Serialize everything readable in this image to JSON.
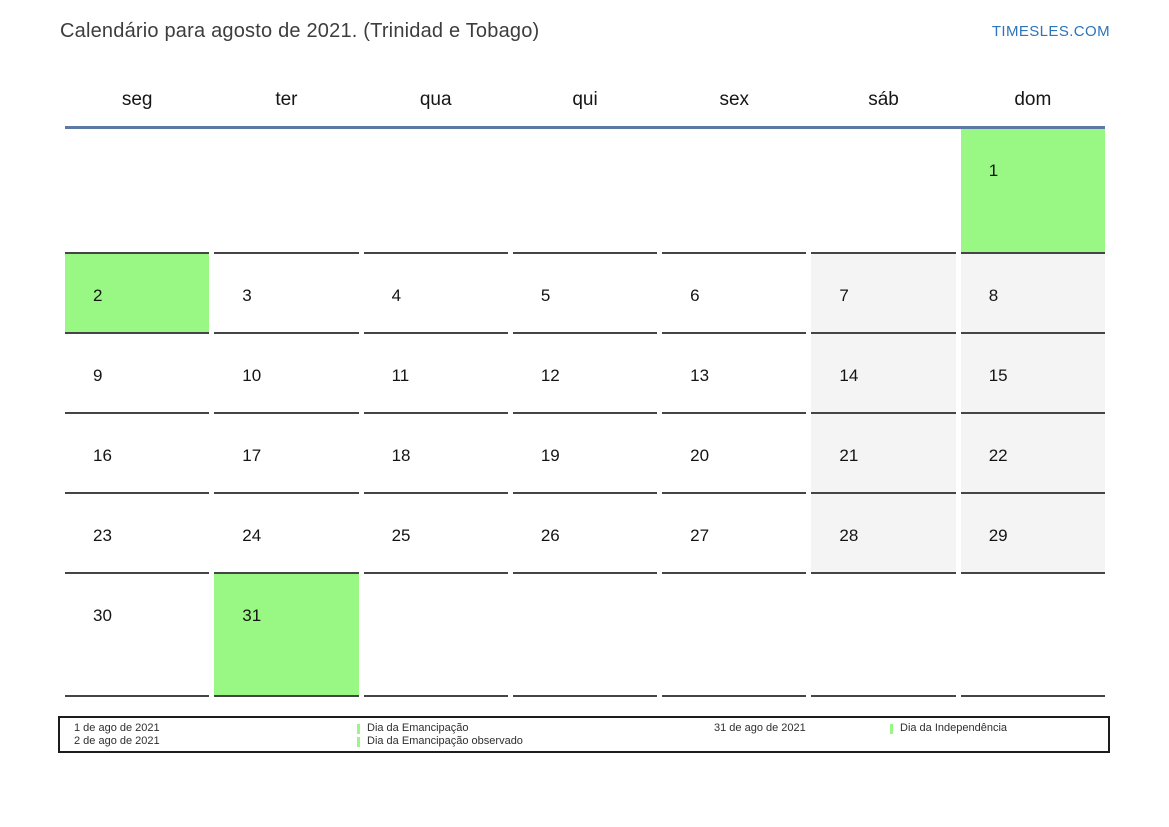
{
  "page": {
    "title": "Calendário para agosto de 2021. (Trinidad e Tobago)",
    "brand": "TIMESLES.COM"
  },
  "colors": {
    "holiday_green": "#99f784",
    "weekend_gray": "#f4f4f4",
    "header_line_blue": "#5b79a3",
    "brand_blue": "#2d74b8"
  },
  "weekdays": [
    "seg",
    "ter",
    "qua",
    "qui",
    "sex",
    "sáb",
    "dom"
  ],
  "weeks": [
    [
      {
        "day": "",
        "type": "empty"
      },
      {
        "day": "",
        "type": "empty"
      },
      {
        "day": "",
        "type": "empty"
      },
      {
        "day": "",
        "type": "empty"
      },
      {
        "day": "",
        "type": "empty"
      },
      {
        "day": "",
        "type": "empty"
      },
      {
        "day": "1",
        "type": "holiday"
      }
    ],
    [
      {
        "day": "2",
        "type": "holiday"
      },
      {
        "day": "3",
        "type": "normal"
      },
      {
        "day": "4",
        "type": "normal"
      },
      {
        "day": "5",
        "type": "normal"
      },
      {
        "day": "6",
        "type": "normal"
      },
      {
        "day": "7",
        "type": "weekend"
      },
      {
        "day": "8",
        "type": "weekend"
      }
    ],
    [
      {
        "day": "9",
        "type": "normal"
      },
      {
        "day": "10",
        "type": "normal"
      },
      {
        "day": "11",
        "type": "normal"
      },
      {
        "day": "12",
        "type": "normal"
      },
      {
        "day": "13",
        "type": "normal"
      },
      {
        "day": "14",
        "type": "weekend"
      },
      {
        "day": "15",
        "type": "weekend"
      }
    ],
    [
      {
        "day": "16",
        "type": "normal"
      },
      {
        "day": "17",
        "type": "normal"
      },
      {
        "day": "18",
        "type": "normal"
      },
      {
        "day": "19",
        "type": "normal"
      },
      {
        "day": "20",
        "type": "normal"
      },
      {
        "day": "21",
        "type": "weekend"
      },
      {
        "day": "22",
        "type": "weekend"
      }
    ],
    [
      {
        "day": "23",
        "type": "normal"
      },
      {
        "day": "24",
        "type": "normal"
      },
      {
        "day": "25",
        "type": "normal"
      },
      {
        "day": "26",
        "type": "normal"
      },
      {
        "day": "27",
        "type": "normal"
      },
      {
        "day": "28",
        "type": "weekend"
      },
      {
        "day": "29",
        "type": "weekend"
      }
    ],
    [
      {
        "day": "30",
        "type": "normal"
      },
      {
        "day": "31",
        "type": "holiday"
      },
      {
        "day": "",
        "type": "empty"
      },
      {
        "day": "",
        "type": "empty"
      },
      {
        "day": "",
        "type": "empty"
      },
      {
        "day": "",
        "type": "empty"
      },
      {
        "day": "",
        "type": "empty"
      }
    ]
  ],
  "legend": {
    "entries": [
      {
        "date": "1 de ago de 2021",
        "name": "Dia da Emancipação"
      },
      {
        "date": "2 de ago de 2021",
        "name": "Dia da Emancipação observado"
      },
      {
        "date": "31 de ago de 2021",
        "name": "Dia da Independência"
      }
    ]
  }
}
